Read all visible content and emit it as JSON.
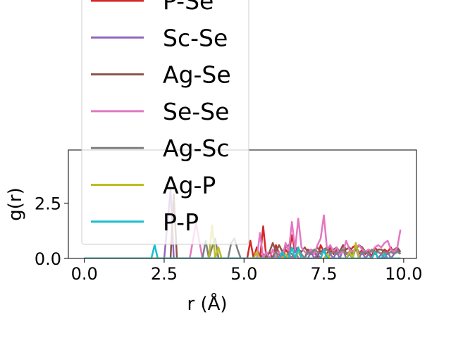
{
  "chart_data": {
    "type": "line",
    "title": "",
    "xlabel": "r (Å)",
    "ylabel": "g(r)",
    "xlim": [
      -0.5,
      10.4
    ],
    "ylim": [
      0.0,
      4.9
    ],
    "xticks": [
      0.0,
      2.5,
      5.0,
      7.5,
      10.0
    ],
    "xtick_labels": [
      "0.0",
      "2.5",
      "5.0",
      "7.5",
      "10.0"
    ],
    "yticks": [
      0.0,
      2.5
    ],
    "ytick_labels": [
      "0.0",
      "2.5"
    ],
    "grid": false,
    "legend_position": "upper-left, overflowing above the plot",
    "x": [
      0.0,
      0.5,
      1.0,
      1.5,
      2.0,
      2.1,
      2.2,
      2.3,
      2.5,
      2.7,
      2.8,
      2.9,
      3.1,
      3.3,
      3.5,
      3.7,
      3.8,
      3.9,
      4.0,
      4.1,
      4.2,
      4.3,
      4.4,
      4.5,
      4.6,
      4.7,
      4.8,
      4.9,
      5.0,
      5.1,
      5.2,
      5.3,
      5.4,
      5.5,
      5.6,
      5.7,
      5.8,
      5.9,
      6.0,
      6.1,
      6.2,
      6.3,
      6.4,
      6.5,
      6.6,
      6.7,
      6.8,
      6.9,
      7.0,
      7.1,
      7.2,
      7.3,
      7.4,
      7.5,
      7.6,
      7.7,
      7.8,
      7.9,
      8.0,
      8.1,
      8.2,
      8.3,
      8.4,
      8.5,
      8.6,
      8.7,
      8.8,
      8.9,
      9.0,
      9.1,
      9.2,
      9.3,
      9.4,
      9.5,
      9.6,
      9.7,
      9.8,
      9.9
    ],
    "series": [
      {
        "name": "P-Se",
        "color": "#d62728",
        "values": [
          0,
          0,
          0,
          0,
          0,
          0,
          0,
          0,
          0,
          0,
          0,
          0,
          0,
          0,
          0,
          0,
          0,
          0,
          0,
          0,
          0,
          0,
          0,
          0,
          0,
          0,
          0,
          0,
          0,
          0,
          0.8,
          0,
          0.5,
          0,
          1.45,
          0,
          0.3,
          0,
          0.6,
          0.2,
          0,
          0.4,
          0.2,
          1.05,
          0.3,
          0.5,
          0,
          0,
          0.4,
          0.2,
          0.4,
          0,
          0.6,
          0.3,
          0.2,
          0.5,
          0.2,
          0.4,
          0.3,
          0.6,
          0.2,
          0.3,
          0.5,
          0.6,
          0.2,
          0.4,
          0.2,
          0.3,
          0.1,
          0.5,
          0.3,
          0.2,
          0.4,
          0.3,
          0.5,
          0.2,
          0.4,
          0.3
        ]
      },
      {
        "name": "Sc-Se",
        "color": "#9467bd",
        "values": [
          0,
          0,
          0,
          0,
          0,
          0,
          0,
          0,
          0,
          3.1,
          0,
          0,
          0,
          0,
          0,
          0,
          0,
          0,
          0,
          0,
          0,
          0,
          0,
          0,
          0,
          0,
          0,
          0,
          0,
          0,
          0,
          0,
          0,
          0,
          0,
          0.2,
          0,
          0,
          0,
          0.3,
          0,
          0,
          0.2,
          0,
          0.4,
          0,
          0,
          0,
          0,
          0.3,
          0,
          0.2,
          0,
          0.4,
          0,
          0.2,
          0,
          0.3,
          0,
          0.4,
          0,
          0.2,
          0,
          0.5,
          0,
          0.3,
          0,
          0.2,
          0,
          0.3,
          0,
          0.2,
          0,
          0.3,
          0,
          0.2,
          0.4,
          0.2
        ]
      },
      {
        "name": "Ag-Se",
        "color": "#8c564b",
        "values": [
          0,
          0,
          0,
          0,
          0,
          0,
          0,
          0,
          0,
          0,
          2.9,
          0,
          0,
          0,
          0,
          0,
          0,
          0,
          0,
          0,
          0,
          0,
          0,
          0,
          0,
          0,
          0,
          0,
          0,
          0,
          0,
          0,
          0,
          0,
          0.2,
          0,
          0.3,
          0.7,
          0.3,
          0.6,
          0.3,
          0.5,
          0.6,
          0.4,
          0.5,
          0.4,
          0.3,
          0.5,
          0.3,
          0.4,
          0.3,
          0.5,
          0.3,
          0.4,
          0.5,
          0.3,
          0.4,
          0.5,
          0.3,
          0.6,
          0.4,
          0.5,
          0.3,
          0.4,
          0.6,
          0.5,
          0.3,
          0.4,
          0.3,
          0.3,
          0.4,
          0.4,
          0.3,
          0.2,
          0.3,
          0.4,
          0.5,
          0.3
        ]
      },
      {
        "name": "Se-Se",
        "color": "#e377c2",
        "values": [
          0,
          0,
          0,
          0,
          0,
          0,
          0,
          0,
          0,
          0,
          0,
          0,
          0,
          0,
          1.6,
          0,
          0,
          0,
          0,
          0,
          0,
          0,
          0,
          0,
          0,
          0,
          0,
          0,
          0,
          0,
          0,
          0,
          0,
          1.15,
          0,
          0.3,
          0,
          0.4,
          0,
          0.3,
          0,
          0.7,
          0.3,
          1.65,
          0.4,
          1.8,
          0.5,
          0.3,
          0.2,
          0.4,
          0.2,
          0.6,
          0.9,
          1.95,
          0.4,
          0.6,
          0.3,
          0.5,
          0.2,
          0.3,
          0.8,
          0.4,
          0.3,
          0.5,
          0.6,
          0.4,
          0.3,
          0.4,
          0.3,
          0.5,
          0.6,
          0.5,
          0.7,
          0.8,
          0.4,
          0.3,
          0.5,
          1.3
        ]
      },
      {
        "name": "Ag-Sc",
        "color": "#7f7f7f",
        "values": [
          0,
          0,
          0,
          0,
          0,
          0,
          0,
          0,
          0,
          0,
          0,
          0,
          0,
          0,
          0,
          0,
          0.8,
          0,
          0.5,
          0.9,
          0,
          0,
          0,
          0,
          0.7,
          0.9,
          0.4,
          0,
          0,
          0,
          0,
          0,
          0,
          0,
          0,
          0,
          0,
          0,
          0.3,
          0,
          0.2,
          0,
          0.3,
          0.2,
          0,
          0.4,
          0.2,
          0,
          0.3,
          0.2,
          0.4,
          0.3,
          0.2,
          0.3,
          0.4,
          0.2,
          0.3,
          0.2,
          0.3,
          0.4,
          0.2,
          0.3,
          0.2,
          0.5,
          0.3,
          0.2,
          0.3,
          0.2,
          0.4,
          0.2,
          0.3,
          0.2,
          0.3,
          0.2,
          0.3,
          0.2,
          0.3,
          0.2
        ]
      },
      {
        "name": "Ag-P",
        "color": "#bcbd22",
        "values": [
          0,
          0,
          0,
          0,
          0,
          0,
          0,
          0,
          0,
          0,
          0,
          0,
          0,
          0,
          0,
          0,
          0,
          0,
          1.5,
          0,
          0.5,
          0,
          0,
          0,
          0,
          0,
          0,
          0,
          0,
          0,
          0,
          0,
          0.3,
          0,
          0,
          0,
          0,
          0,
          0,
          0,
          0,
          0.2,
          0,
          0,
          0,
          0.3,
          0,
          0,
          0,
          0,
          0,
          0,
          0,
          0,
          0.2,
          0,
          0,
          0,
          0,
          0,
          0,
          0.3,
          0,
          0.7,
          0,
          0,
          0,
          0,
          0,
          0.3,
          0,
          0,
          0.2,
          0,
          0,
          0,
          0,
          0
        ]
      },
      {
        "name": "P-P",
        "color": "#17becf",
        "values": [
          0,
          0,
          0,
          0,
          0,
          0,
          0.6,
          0,
          0,
          0,
          0,
          0,
          0,
          0,
          0,
          0,
          0,
          0,
          0,
          0,
          0,
          0,
          0,
          0,
          0,
          0,
          0,
          0,
          0,
          0,
          0,
          0,
          0,
          0,
          0,
          0,
          0,
          0,
          0,
          0,
          0.3,
          0,
          0,
          0.5,
          0,
          0.5,
          0,
          0,
          0,
          0,
          0,
          0,
          0,
          0.4,
          0,
          0,
          0,
          0,
          0,
          0,
          0,
          0,
          0,
          0,
          0,
          0,
          0,
          0,
          0,
          0.3,
          0,
          0,
          0.2,
          0,
          0,
          0,
          0,
          0
        ]
      }
    ]
  }
}
